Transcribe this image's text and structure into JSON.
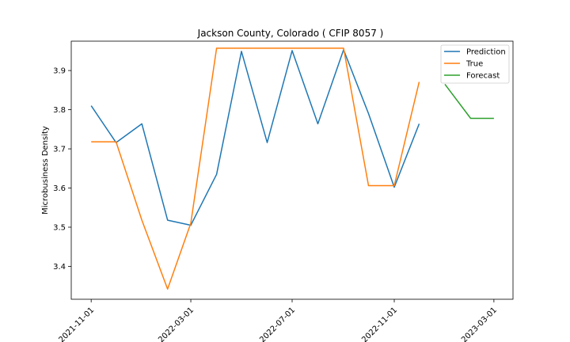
{
  "chart_data": {
    "type": "line",
    "title": "Jackson County, Colorado ( CFIP 8057 )",
    "xlabel": "",
    "ylabel": "Microbusiness Density",
    "x_ticks": [
      "2021-11-01",
      "2022-03-01",
      "2022-07-01",
      "2022-11-01",
      "2023-03-01"
    ],
    "y_ticks": [
      "3.4",
      "3.5",
      "3.6",
      "3.7",
      "3.8",
      "3.9"
    ],
    "xlim": [
      "2021-10-08",
      "2023-03-24"
    ],
    "ylim": [
      3.316,
      3.975
    ],
    "legend_position": "top-right",
    "series": [
      {
        "name": "Prediction",
        "color": "#1f77b4",
        "x": [
          "2021-11-01",
          "2021-12-01",
          "2022-01-01",
          "2022-02-01",
          "2022-03-01",
          "2022-04-01",
          "2022-05-01",
          "2022-06-01",
          "2022-07-01",
          "2022-08-01",
          "2022-09-01",
          "2022-10-01",
          "2022-11-01",
          "2022-12-01"
        ],
        "values": [
          3.81,
          3.716,
          3.764,
          3.518,
          3.505,
          3.635,
          3.949,
          3.716,
          3.951,
          3.764,
          3.953,
          3.79,
          3.602,
          3.764
        ]
      },
      {
        "name": "True",
        "color": "#ff7f0e",
        "x": [
          "2021-11-01",
          "2021-12-01",
          "2022-01-01",
          "2022-02-01",
          "2022-03-01",
          "2022-04-01",
          "2022-05-01",
          "2022-06-01",
          "2022-07-01",
          "2022-08-01",
          "2022-09-01",
          "2022-10-01",
          "2022-11-01",
          "2022-12-01"
        ],
        "values": [
          3.718,
          3.718,
          3.518,
          3.342,
          3.51,
          3.957,
          3.957,
          3.957,
          3.957,
          3.957,
          3.957,
          3.606,
          3.606,
          3.871
        ]
      },
      {
        "name": "Forecast",
        "color": "#2ca02c",
        "x": [
          "2023-01-01",
          "2023-02-01",
          "2023-03-01"
        ],
        "values": [
          3.865,
          3.778,
          3.778
        ]
      }
    ]
  }
}
